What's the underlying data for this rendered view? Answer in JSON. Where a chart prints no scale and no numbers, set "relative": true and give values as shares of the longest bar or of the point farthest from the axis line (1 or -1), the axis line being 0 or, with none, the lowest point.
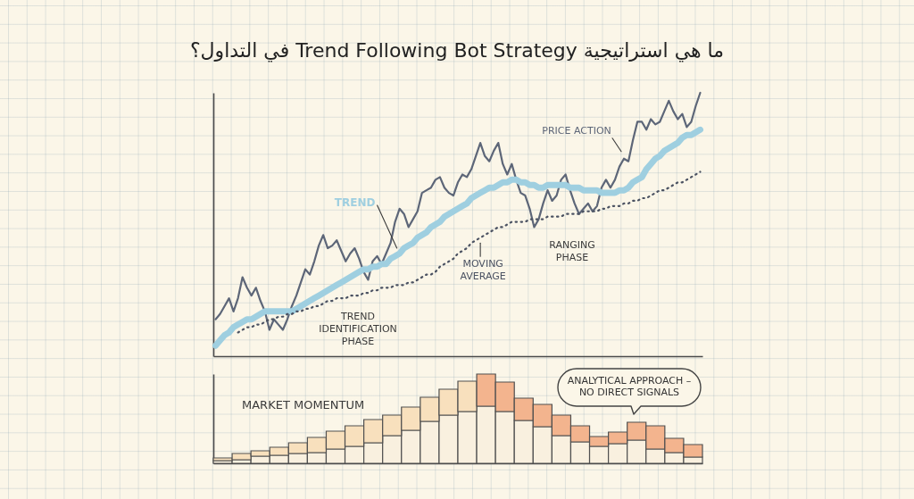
{
  "chart_data": [
    {
      "type": "line",
      "title": "ما هي استراتيجية Trend Following Bot Strategy في التداول؟",
      "relative": true,
      "categories": [
        null,
        null,
        null,
        null,
        null,
        null,
        null,
        null,
        null,
        null,
        null,
        null,
        null,
        null,
        null,
        null,
        null,
        null,
        null,
        null,
        null,
        null,
        null,
        null,
        null,
        null,
        null,
        null,
        null,
        null,
        null,
        null,
        null,
        null,
        null,
        null,
        null,
        null,
        null,
        null,
        null,
        null,
        null,
        null,
        null,
        null,
        null,
        null,
        null,
        null,
        null,
        null,
        null,
        null,
        null,
        null,
        null,
        null,
        null,
        null,
        null,
        null,
        null,
        null,
        null,
        null,
        null,
        null,
        null,
        null,
        null,
        null,
        null,
        null,
        null,
        null,
        null,
        null,
        null,
        null,
        null,
        null,
        null,
        null,
        null,
        null,
        null,
        null,
        null,
        null,
        null,
        null,
        null,
        null,
        null,
        null,
        null,
        null,
        null,
        null,
        null,
        null,
        null,
        null,
        null,
        null,
        null,
        null,
        null
      ],
      "series": [
        {
          "name": "PRICE ACTION",
          "color": "#5d6678",
          "values": [
            0.14,
            0.16,
            0.19,
            0.22,
            0.17,
            0.22,
            0.3,
            0.26,
            0.23,
            0.26,
            0.21,
            0.17,
            0.1,
            0.14,
            0.12,
            0.1,
            0.14,
            0.19,
            0.23,
            0.28,
            0.33,
            0.31,
            0.36,
            0.42,
            0.46,
            0.41,
            0.42,
            0.44,
            0.4,
            0.36,
            0.39,
            0.41,
            0.37,
            0.32,
            0.29,
            0.36,
            0.38,
            0.35,
            0.39,
            0.43,
            0.51,
            0.56,
            0.54,
            0.49,
            0.52,
            0.55,
            0.62,
            0.63,
            0.64,
            0.67,
            0.68,
            0.64,
            0.62,
            0.61,
            0.66,
            0.69,
            0.68,
            0.71,
            0.76,
            0.81,
            0.76,
            0.74,
            0.78,
            0.81,
            0.73,
            0.69,
            0.73,
            0.67,
            0.62,
            0.61,
            0.56,
            0.49,
            0.52,
            0.58,
            0.63,
            0.59,
            0.61,
            0.67,
            0.69,
            0.63,
            0.58,
            0.54,
            0.56,
            0.58,
            0.55,
            0.57,
            0.64,
            0.67,
            0.64,
            0.67,
            0.72,
            0.75,
            0.74,
            0.82,
            0.89,
            0.89,
            0.86,
            0.9,
            0.88,
            0.89,
            0.93,
            0.97,
            0.93,
            0.9,
            0.92,
            0.87,
            0.89,
            0.95,
            1.0
          ]
        },
        {
          "name": "TREND",
          "color": "#9fcfe0",
          "values": [
            0.04,
            0.06,
            0.08,
            0.09,
            0.11,
            0.12,
            0.13,
            0.14,
            0.14,
            0.15,
            0.16,
            0.17,
            0.17,
            0.17,
            0.17,
            0.17,
            0.17,
            0.17,
            0.18,
            0.19,
            0.2,
            0.21,
            0.22,
            0.23,
            0.24,
            0.25,
            0.26,
            0.27,
            0.28,
            0.29,
            0.3,
            0.31,
            0.32,
            0.33,
            0.33,
            0.34,
            0.34,
            0.35,
            0.35,
            0.37,
            0.38,
            0.39,
            0.41,
            0.42,
            0.43,
            0.45,
            0.46,
            0.47,
            0.49,
            0.5,
            0.51,
            0.53,
            0.54,
            0.55,
            0.56,
            0.57,
            0.58,
            0.6,
            0.61,
            0.62,
            0.63,
            0.64,
            0.64,
            0.65,
            0.66,
            0.66,
            0.67,
            0.67,
            0.66,
            0.66,
            0.65,
            0.65,
            0.64,
            0.64,
            0.65,
            0.65,
            0.65,
            0.65,
            0.65,
            0.64,
            0.64,
            0.64,
            0.63,
            0.63,
            0.63,
            0.63,
            0.62,
            0.62,
            0.62,
            0.62,
            0.63,
            0.63,
            0.64,
            0.66,
            0.67,
            0.68,
            0.71,
            0.73,
            0.75,
            0.76,
            0.78,
            0.79,
            0.8,
            0.81,
            0.83,
            0.84,
            0.84,
            0.85,
            0.86
          ]
        },
        {
          "name": "MOVING\nAVERAGE",
          "color": "#4b5262",
          "line_style": "dotted",
          "values": [
            null,
            null,
            null,
            null,
            null,
            0.09,
            0.1,
            0.11,
            0.11,
            0.12,
            0.12,
            0.13,
            0.14,
            0.14,
            0.15,
            0.15,
            0.16,
            0.16,
            0.17,
            0.17,
            0.18,
            0.18,
            0.19,
            0.19,
            0.2,
            0.21,
            0.21,
            0.22,
            0.22,
            0.22,
            0.23,
            0.23,
            0.23,
            0.24,
            0.24,
            0.25,
            0.25,
            0.26,
            0.26,
            0.26,
            0.27,
            0.27,
            0.27,
            0.28,
            0.28,
            0.29,
            0.3,
            0.31,
            0.31,
            0.32,
            0.34,
            0.35,
            0.36,
            0.37,
            0.39,
            0.4,
            0.41,
            0.43,
            0.44,
            0.45,
            0.46,
            0.47,
            0.48,
            0.49,
            0.49,
            0.5,
            0.51,
            0.51,
            0.51,
            0.51,
            0.52,
            0.52,
            0.52,
            0.52,
            0.53,
            0.53,
            0.53,
            0.53,
            0.54,
            0.54,
            0.54,
            0.54,
            0.55,
            0.55,
            0.55,
            0.55,
            0.56,
            0.56,
            0.57,
            0.57,
            0.57,
            0.58,
            0.58,
            0.59,
            0.59,
            0.6,
            0.6,
            0.61,
            0.62,
            0.63,
            0.63,
            0.64,
            0.65,
            0.66,
            0.66,
            0.67,
            0.68,
            0.69,
            0.7
          ]
        }
      ],
      "annotations": [
        "TREND\nIDENTIFICATION\nPHASE",
        "RANGING\nPHASE"
      ]
    },
    {
      "type": "bar",
      "title": "MARKET MOMENTUM",
      "relative": true,
      "stacked": true,
      "categories": [
        null,
        null,
        null,
        null,
        null,
        null,
        null,
        null,
        null,
        null,
        null,
        null,
        null,
        null,
        null,
        null,
        null,
        null,
        null,
        null,
        null,
        null,
        null,
        null,
        null,
        null
      ],
      "series": [
        {
          "color": "#f9f0df",
          "values": [
            0.03,
            0.04,
            0.08,
            0.09,
            0.11,
            0.12,
            0.16,
            0.19,
            0.23,
            0.31,
            0.37,
            0.47,
            0.54,
            0.58,
            0.64,
            0.58,
            0.48,
            0.41,
            0.31,
            0.24,
            0.19,
            0.22,
            0.26,
            0.16,
            0.12,
            0.07
          ]
        },
        {
          "color": "#f8e0bd",
          "values": [
            0.03,
            0.07,
            0.06,
            0.09,
            0.12,
            0.17,
            0.2,
            0.23,
            0.26,
            0.23,
            0.26,
            0.27,
            0.29,
            0.34,
            null,
            null,
            null,
            null,
            null,
            null,
            null,
            null,
            null,
            null,
            null,
            null
          ]
        },
        {
          "color": "#f3b48e",
          "values": [
            null,
            null,
            null,
            null,
            null,
            null,
            null,
            null,
            null,
            null,
            null,
            null,
            null,
            null,
            0.36,
            0.33,
            0.25,
            0.25,
            0.23,
            0.18,
            0.11,
            0.13,
            0.2,
            0.26,
            0.16,
            0.14
          ]
        }
      ],
      "annotations": [
        "ANALYTICAL APPROACH –\nNO DIRECT SIGNALS"
      ]
    }
  ]
}
